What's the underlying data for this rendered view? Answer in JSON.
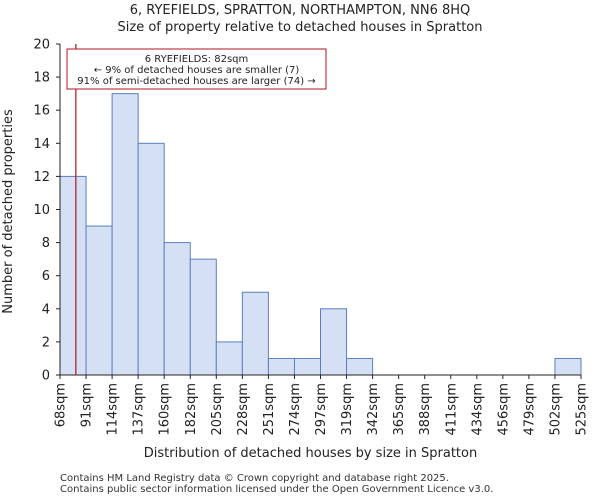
{
  "title_line1": "6, RYEFIELDS, SPRATTON, NORTHAMPTON, NN6 8HQ",
  "title_line2": "Size of property relative to detached houses in Spratton",
  "footer_line1": "Contains HM Land Registry data © Crown copyright and database right 2025.",
  "footer_line2": "Contains public sector information licensed under the Open Government Licence v3.0.",
  "colors": {
    "bar_fill": "#d6e0f5",
    "bar_stroke": "#5b7fbf",
    "marker": "#b0141e",
    "annotation_border": "#b0141e",
    "axis": "#222222"
  },
  "chart_data": {
    "type": "bar",
    "title": "Size of property relative to detached houses in Spratton",
    "xlabel": "Distribution of detached houses by size in Spratton",
    "ylabel": "Number of detached properties",
    "bin_edges_labels": [
      "68sqm",
      "91sqm",
      "114sqm",
      "137sqm",
      "160sqm",
      "182sqm",
      "205sqm",
      "228sqm",
      "251sqm",
      "274sqm",
      "297sqm",
      "319sqm",
      "342sqm",
      "365sqm",
      "388sqm",
      "411sqm",
      "434sqm",
      "456sqm",
      "479sqm",
      "502sqm",
      "525sqm"
    ],
    "values": [
      12,
      9,
      17,
      14,
      8,
      7,
      2,
      5,
      1,
      1,
      4,
      1,
      0,
      0,
      0,
      0,
      0,
      0,
      0,
      1
    ],
    "ylim": [
      0,
      20
    ],
    "yticks": [
      0,
      2,
      4,
      6,
      8,
      10,
      12,
      14,
      16,
      18,
      20
    ],
    "marker_value_sqm": 82,
    "annotation": {
      "line1": "6 RYEFIELDS: 82sqm",
      "line2": "← 9% of detached houses are smaller (7)",
      "line3": "91% of semi-detached houses are larger (74) →"
    }
  }
}
